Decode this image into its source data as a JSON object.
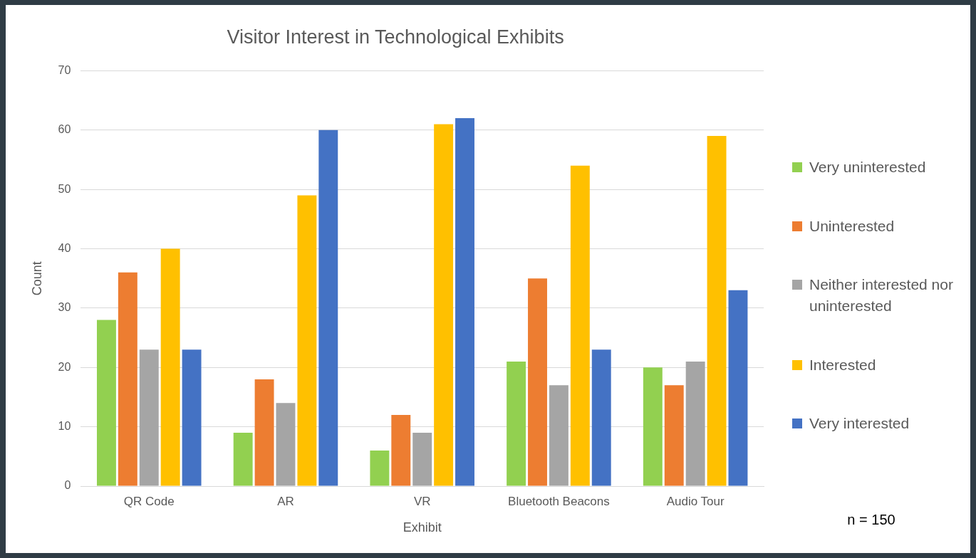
{
  "chart_data": {
    "type": "bar",
    "title": "Visitor Interest in Technological Exhibits",
    "xlabel": "Exhibit",
    "ylabel": "Count",
    "categories": [
      "QR Code",
      "AR",
      "VR",
      "Bluetooth Beacons",
      "Audio Tour"
    ],
    "series": [
      {
        "name": "Very uninterested",
        "color": "#92d050",
        "values": [
          28,
          9,
          6,
          21,
          20
        ]
      },
      {
        "name": "Uninterested",
        "color": "#ed7d31",
        "values": [
          36,
          18,
          12,
          35,
          17
        ]
      },
      {
        "name": "Neither interested nor uninterested",
        "color": "#a5a5a5",
        "values": [
          23,
          14,
          9,
          17,
          21
        ]
      },
      {
        "name": "Interested",
        "color": "#ffc000",
        "values": [
          40,
          49,
          61,
          54,
          59
        ]
      },
      {
        "name": "Very interested",
        "color": "#4472c4",
        "values": [
          23,
          60,
          62,
          23,
          33
        ]
      }
    ],
    "ylim": [
      0,
      70
    ],
    "yticks": [
      0,
      10,
      20,
      30,
      40,
      50,
      60,
      70
    ],
    "grid": "y",
    "legend": "right",
    "annotations": [
      "n = 150"
    ]
  }
}
